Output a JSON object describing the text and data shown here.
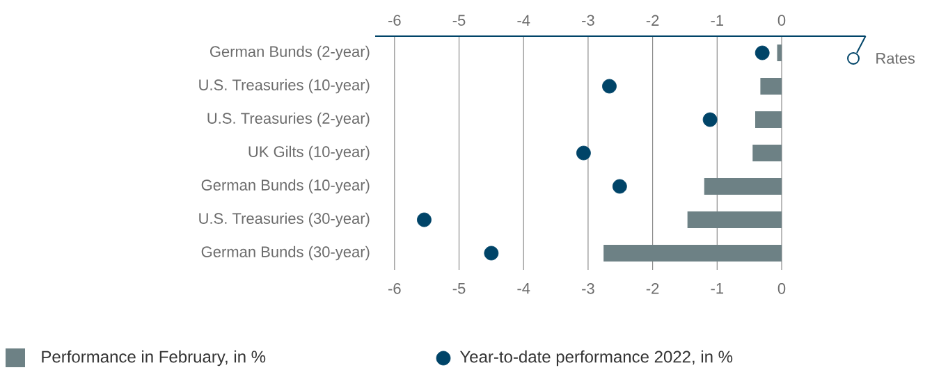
{
  "chart_data": {
    "type": "bar",
    "orientation": "horizontal",
    "categories": [
      "German Bunds (2-year)",
      "U.S. Treasuries (10-year)",
      "U.S. Treasuries (2-year)",
      "UK Gilts (10-year)",
      "German Bunds (10-year)",
      "U.S. Treasuries (30-year)",
      "German Bunds (30-year)"
    ],
    "series": [
      {
        "name": "Performance in February, in %",
        "color": "#6d8185",
        "values": [
          -0.07,
          -0.33,
          -0.41,
          -0.45,
          -1.2,
          -1.46,
          -2.76
        ]
      },
      {
        "name": "Year-to-date performance 2022, in %",
        "type": "scatter",
        "marker": "circle",
        "color": "#004468",
        "values": [
          -0.3,
          -2.67,
          -1.11,
          -3.07,
          -2.51,
          -5.54,
          -4.5
        ]
      }
    ],
    "xlim": [
      -6.3,
      1.3
    ],
    "xticks": [
      -6,
      -5,
      -4,
      -3,
      -2,
      -1,
      0
    ],
    "x2lim": [
      -6.3,
      1.3
    ],
    "x2ticks": [
      -6,
      -5,
      -4,
      -3,
      -2,
      -1,
      0
    ],
    "grid": "x",
    "legend": "bottom",
    "annotations": [
      "Rates"
    ]
  }
}
